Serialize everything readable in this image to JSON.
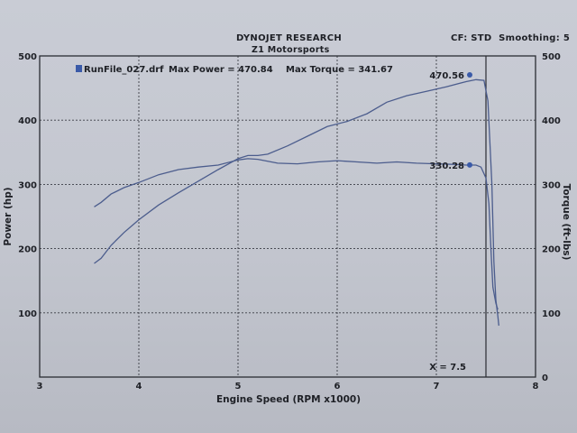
{
  "header": {
    "company": "DYNOJET RESEARCH",
    "shop": "Z1 Motorsports",
    "settings": "CF: STD  Smoothing: 5"
  },
  "legend": {
    "run_file": "RunFile_027.drf",
    "max_power_label": "Max Power = 470.84",
    "max_torque_label": "Max Torque = 341.67",
    "swatch_color": "#3a5aa8"
  },
  "annotations": {
    "power_peak": "470.56",
    "torque_value": "330.28",
    "cursor": "X = 7.5"
  },
  "chart_data": {
    "type": "line",
    "xlabel": "Engine Speed (RPM x1000)",
    "ylabel_left": "Power (hp)",
    "ylabel_right": "Torque (ft-lbs)",
    "xlim": [
      3,
      8
    ],
    "ylim_left": [
      0,
      500
    ],
    "ylim_right": [
      0,
      500
    ],
    "xticks": [
      3,
      4,
      5,
      6,
      7,
      8
    ],
    "yticks_left": [
      100,
      200,
      300,
      400,
      500
    ],
    "yticks_right": [
      0,
      100,
      200,
      300,
      400,
      500
    ],
    "grid": true,
    "cursor_x": 7.5,
    "line_color": "#4c5d8d",
    "series": [
      {
        "axis": "left",
        "x": [
          3.55,
          3.62,
          3.72,
          3.85,
          4.0,
          4.2,
          4.4,
          4.6,
          4.8,
          5.0,
          5.1,
          5.2,
          5.3,
          5.5,
          5.7,
          5.9,
          6.1,
          6.3,
          6.5,
          6.7,
          6.9,
          7.1,
          7.3,
          7.4,
          7.48,
          7.52,
          7.56,
          7.58,
          7.6,
          7.62,
          7.63
        ],
        "values": [
          177,
          185,
          205,
          225,
          245,
          268,
          287,
          305,
          323,
          340,
          345,
          345,
          347,
          360,
          375,
          390,
          398,
          410,
          428,
          438,
          445,
          452,
          460,
          463,
          462,
          430,
          300,
          180,
          120,
          95,
          80
        ]
      },
      {
        "axis": "right",
        "x": [
          3.55,
          3.62,
          3.72,
          3.85,
          4.0,
          4.2,
          4.4,
          4.6,
          4.8,
          5.0,
          5.1,
          5.2,
          5.4,
          5.6,
          5.8,
          6.0,
          6.2,
          6.4,
          6.6,
          6.8,
          7.0,
          7.2,
          7.3,
          7.4,
          7.45,
          7.5,
          7.53,
          7.55,
          7.57,
          7.6,
          7.62
        ],
        "values": [
          265,
          272,
          285,
          295,
          303,
          315,
          323,
          327,
          330,
          338,
          340,
          339,
          333,
          332,
          335,
          337,
          335,
          333,
          335,
          333,
          332,
          331,
          330,
          330,
          327,
          310,
          270,
          200,
          140,
          115,
          105
        ]
      }
    ]
  }
}
